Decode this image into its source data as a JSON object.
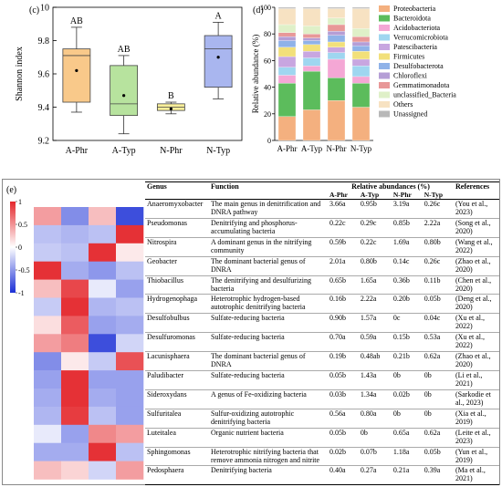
{
  "panel_c": {
    "label": "(c)",
    "chart_data": {
      "type": "box",
      "ylabel": "Shannon index",
      "ylim": [
        9.2,
        10.0
      ],
      "yticks": [
        9.2,
        9.4,
        9.6,
        9.8,
        10.0
      ],
      "categories": [
        "A-Phr",
        "A-Typ",
        "N-Phr",
        "N-Typ"
      ],
      "colors": [
        "#f9c98a",
        "#b7e39e",
        "#f9ef9a",
        "#a9b6ef"
      ],
      "boxes": [
        {
          "whisker_low": 9.37,
          "q1": 9.43,
          "median": 9.71,
          "q3": 9.75,
          "whisker_high": 9.88,
          "mean": 9.62,
          "letter": "AB"
        },
        {
          "whisker_low": 9.24,
          "q1": 9.35,
          "median": 9.42,
          "q3": 9.65,
          "whisker_high": 9.71,
          "mean": 9.47,
          "letter": "AB"
        },
        {
          "whisker_low": 9.36,
          "q1": 9.38,
          "median": 9.4,
          "q3": 9.42,
          "whisker_high": 9.43,
          "mean": 9.39,
          "letter": "B"
        },
        {
          "whisker_low": 9.45,
          "q1": 9.52,
          "median": 9.75,
          "q3": 9.83,
          "whisker_high": 9.91,
          "mean": 9.7,
          "letter": "A"
        }
      ]
    }
  },
  "panel_d": {
    "label": "(d)",
    "chart_data": {
      "type": "stacked_bar",
      "ylabel": "Relative abundance (%)",
      "ylim": [
        0,
        100
      ],
      "yticks": [
        0,
        20,
        40,
        60,
        80,
        100
      ],
      "categories": [
        "A-Phr",
        "A-Typ",
        "N-Phr",
        "N-Typ"
      ],
      "series": [
        {
          "name": "Proteobacteria",
          "color": "#f4b07f",
          "values": [
            18,
            23,
            30,
            25
          ]
        },
        {
          "name": "Bacteroidota",
          "color": "#5cbc5c",
          "values": [
            25,
            29,
            17,
            18
          ]
        },
        {
          "name": "Acidobacteriota",
          "color": "#f4a7d5",
          "values": [
            6,
            4,
            14,
            5
          ]
        },
        {
          "name": "Verrucomicrobiota",
          "color": "#9fd6f0",
          "values": [
            6,
            6,
            5,
            8
          ]
        },
        {
          "name": "Patescibacteria",
          "color": "#c8a6e0",
          "values": [
            8,
            5,
            4,
            5
          ]
        },
        {
          "name": "Firmicutes",
          "color": "#f2e07a",
          "values": [
            7,
            5,
            4,
            6
          ]
        },
        {
          "name": "Desulfobacterota",
          "color": "#8fb2e8",
          "values": [
            5,
            3,
            5,
            4
          ]
        },
        {
          "name": "Chloroflexi",
          "color": "#b59ed6",
          "values": [
            3,
            2,
            3,
            3
          ]
        },
        {
          "name": "Gemmatimonadota",
          "color": "#e89898",
          "values": [
            3,
            3,
            5,
            4
          ]
        },
        {
          "name": "unclassified_Bacteria",
          "color": "#dff0c8",
          "values": [
            6,
            6,
            5,
            6
          ]
        },
        {
          "name": "Others",
          "color": "#f7e2c2",
          "values": [
            12,
            13,
            7,
            15
          ]
        },
        {
          "name": "Unassigned",
          "color": "#b8b8b8",
          "values": [
            1,
            1,
            1,
            1
          ]
        }
      ]
    }
  },
  "panel_e": {
    "label": "(e)",
    "colorbar": {
      "ticks": [
        "1",
        "0.5",
        "0",
        "-0.5",
        "-1"
      ]
    },
    "columns": [
      "A-Phr",
      "A-Typ",
      "N-Phr",
      "N-Typ"
    ],
    "heatmap": [
      [
        0.45,
        -0.55,
        0.3,
        -0.85
      ],
      [
        -0.3,
        -0.35,
        -0.3,
        0.95
      ],
      [
        -0.25,
        -0.3,
        0.95,
        0.1
      ],
      [
        0.95,
        -0.4,
        -0.5,
        -0.3
      ],
      [
        0.3,
        0.85,
        -0.1,
        -0.45
      ],
      [
        -0.25,
        0.95,
        -0.35,
        -0.3
      ],
      [
        0.15,
        0.75,
        -0.45,
        -0.4
      ],
      [
        0.45,
        0.6,
        -0.85,
        -0.2
      ],
      [
        -0.55,
        0.1,
        -0.25,
        0.8
      ],
      [
        -0.45,
        0.95,
        -0.45,
        -0.45
      ],
      [
        -0.4,
        0.95,
        -0.4,
        -0.45
      ],
      [
        -0.35,
        0.9,
        -0.3,
        -0.45
      ],
      [
        -0.1,
        -0.45,
        0.55,
        0.45
      ],
      [
        -0.4,
        -0.4,
        0.95,
        -0.3
      ],
      [
        0.3,
        0.2,
        -0.2,
        0.45
      ]
    ],
    "table": {
      "headers": {
        "genus": "Genus",
        "function": "Function",
        "abundance": "Relative abundances (%)",
        "references": "References",
        "sub": [
          "A-Phr",
          "A-Typ",
          "N-Phr",
          "N-Typ"
        ]
      },
      "rows": [
        {
          "genus": "Anaeromyxobacter",
          "function": "The main genus in denitrification and DNRA pathway",
          "v": [
            "3.66a",
            "0.95b",
            "3.19a",
            "0.26c"
          ],
          "ref": "(You et al., 2023)"
        },
        {
          "genus": "Pseudomonas",
          "function": "Denitrifying and phosphorus-accumulating bacteria",
          "v": [
            "0.22c",
            "0.29c",
            "0.85b",
            "2.22a"
          ],
          "ref": "(Song et al., 2020)"
        },
        {
          "genus": "Nitrospira",
          "function": "A dominant genus in the nitrifying community",
          "v": [
            "0.59b",
            "0.22c",
            "1.69a",
            "0.80b"
          ],
          "ref": "(Wang et al., 2022)"
        },
        {
          "genus": "Geobacter",
          "function": "The dominant bacterial genus of DNRA",
          "v": [
            "2.01a",
            "0.80b",
            "0.14c",
            "0.26c"
          ],
          "ref": "(Zhao et al., 2020)"
        },
        {
          "genus": "Thiobacillus",
          "function": "The denitrifying and desulfurizing bacteria",
          "v": [
            "0.65b",
            "1.65a",
            "0.36b",
            "0.11b"
          ],
          "ref": "(Chen et al., 2020)"
        },
        {
          "genus": "Hydrogenophaga",
          "function": "Heterotrophic hydrogen-based autotrophic denitrifying bacteria",
          "v": [
            "0.16b",
            "2.22a",
            "0.20b",
            "0.05b"
          ],
          "ref": "(Deng et al., 2020)"
        },
        {
          "genus": "Desulfobulbus",
          "function": "Sulfate-reducing bacteria",
          "v": [
            "0.90b",
            "1.57a",
            "0c",
            "0.04c"
          ],
          "ref": "(Xu et al., 2022)"
        },
        {
          "genus": "Desulfuromonas",
          "function": "Sulfate-reducing bacteria",
          "v": [
            "0.70a",
            "0.59a",
            "0.15b",
            "0.53a"
          ],
          "ref": "(Xu et al., 2022)"
        },
        {
          "genus": "Lacunisphaera",
          "function": "The dominant bacterial genus of DNRA",
          "v": [
            "0.19b",
            "0.48ab",
            "0.21b",
            "0.62a"
          ],
          "ref": "(Zhao et al., 2020)"
        },
        {
          "genus": "Paludibacter",
          "function": "Sulfate-reducing bacteria",
          "v": [
            "0.05b",
            "1.43a",
            "0b",
            "0b"
          ],
          "ref": "(Li et al., 2021)"
        },
        {
          "genus": "Sideroxydans",
          "function": "A genus of Fe-oxidizing bacteria",
          "v": [
            "0.03b",
            "1.34a",
            "0.02b",
            "0b"
          ],
          "ref": "(Sarkodie et al., 2023)"
        },
        {
          "genus": "Sulfuritalea",
          "function": "Sulfur-oxidizing autotrophic denitrifying bacteria",
          "v": [
            "0.56a",
            "0.80a",
            "0b",
            "0b"
          ],
          "ref": "(Xia et al., 2019)"
        },
        {
          "genus": "Luteitalea",
          "function": "Organic nutrient bacteria",
          "v": [
            "0.05b",
            "0b",
            "0.65a",
            "0.62a"
          ],
          "ref": "(Leite et al., 2023)"
        },
        {
          "genus": "Sphingomonas",
          "function": "Heterotrophic nitrifying bacteria that remove ammonia nitrogen and nitrite",
          "v": [
            "0.02b",
            "0.07b",
            "1.18a",
            "0.05b"
          ],
          "ref": "(Yun et al., 2019)"
        },
        {
          "genus": "Pedosphaera",
          "function": "Denitrifying bacteria",
          "v": [
            "0.40a",
            "0.27a",
            "0.21a",
            "0.39a"
          ],
          "ref": "(Ma et al., 2021)"
        }
      ]
    }
  }
}
